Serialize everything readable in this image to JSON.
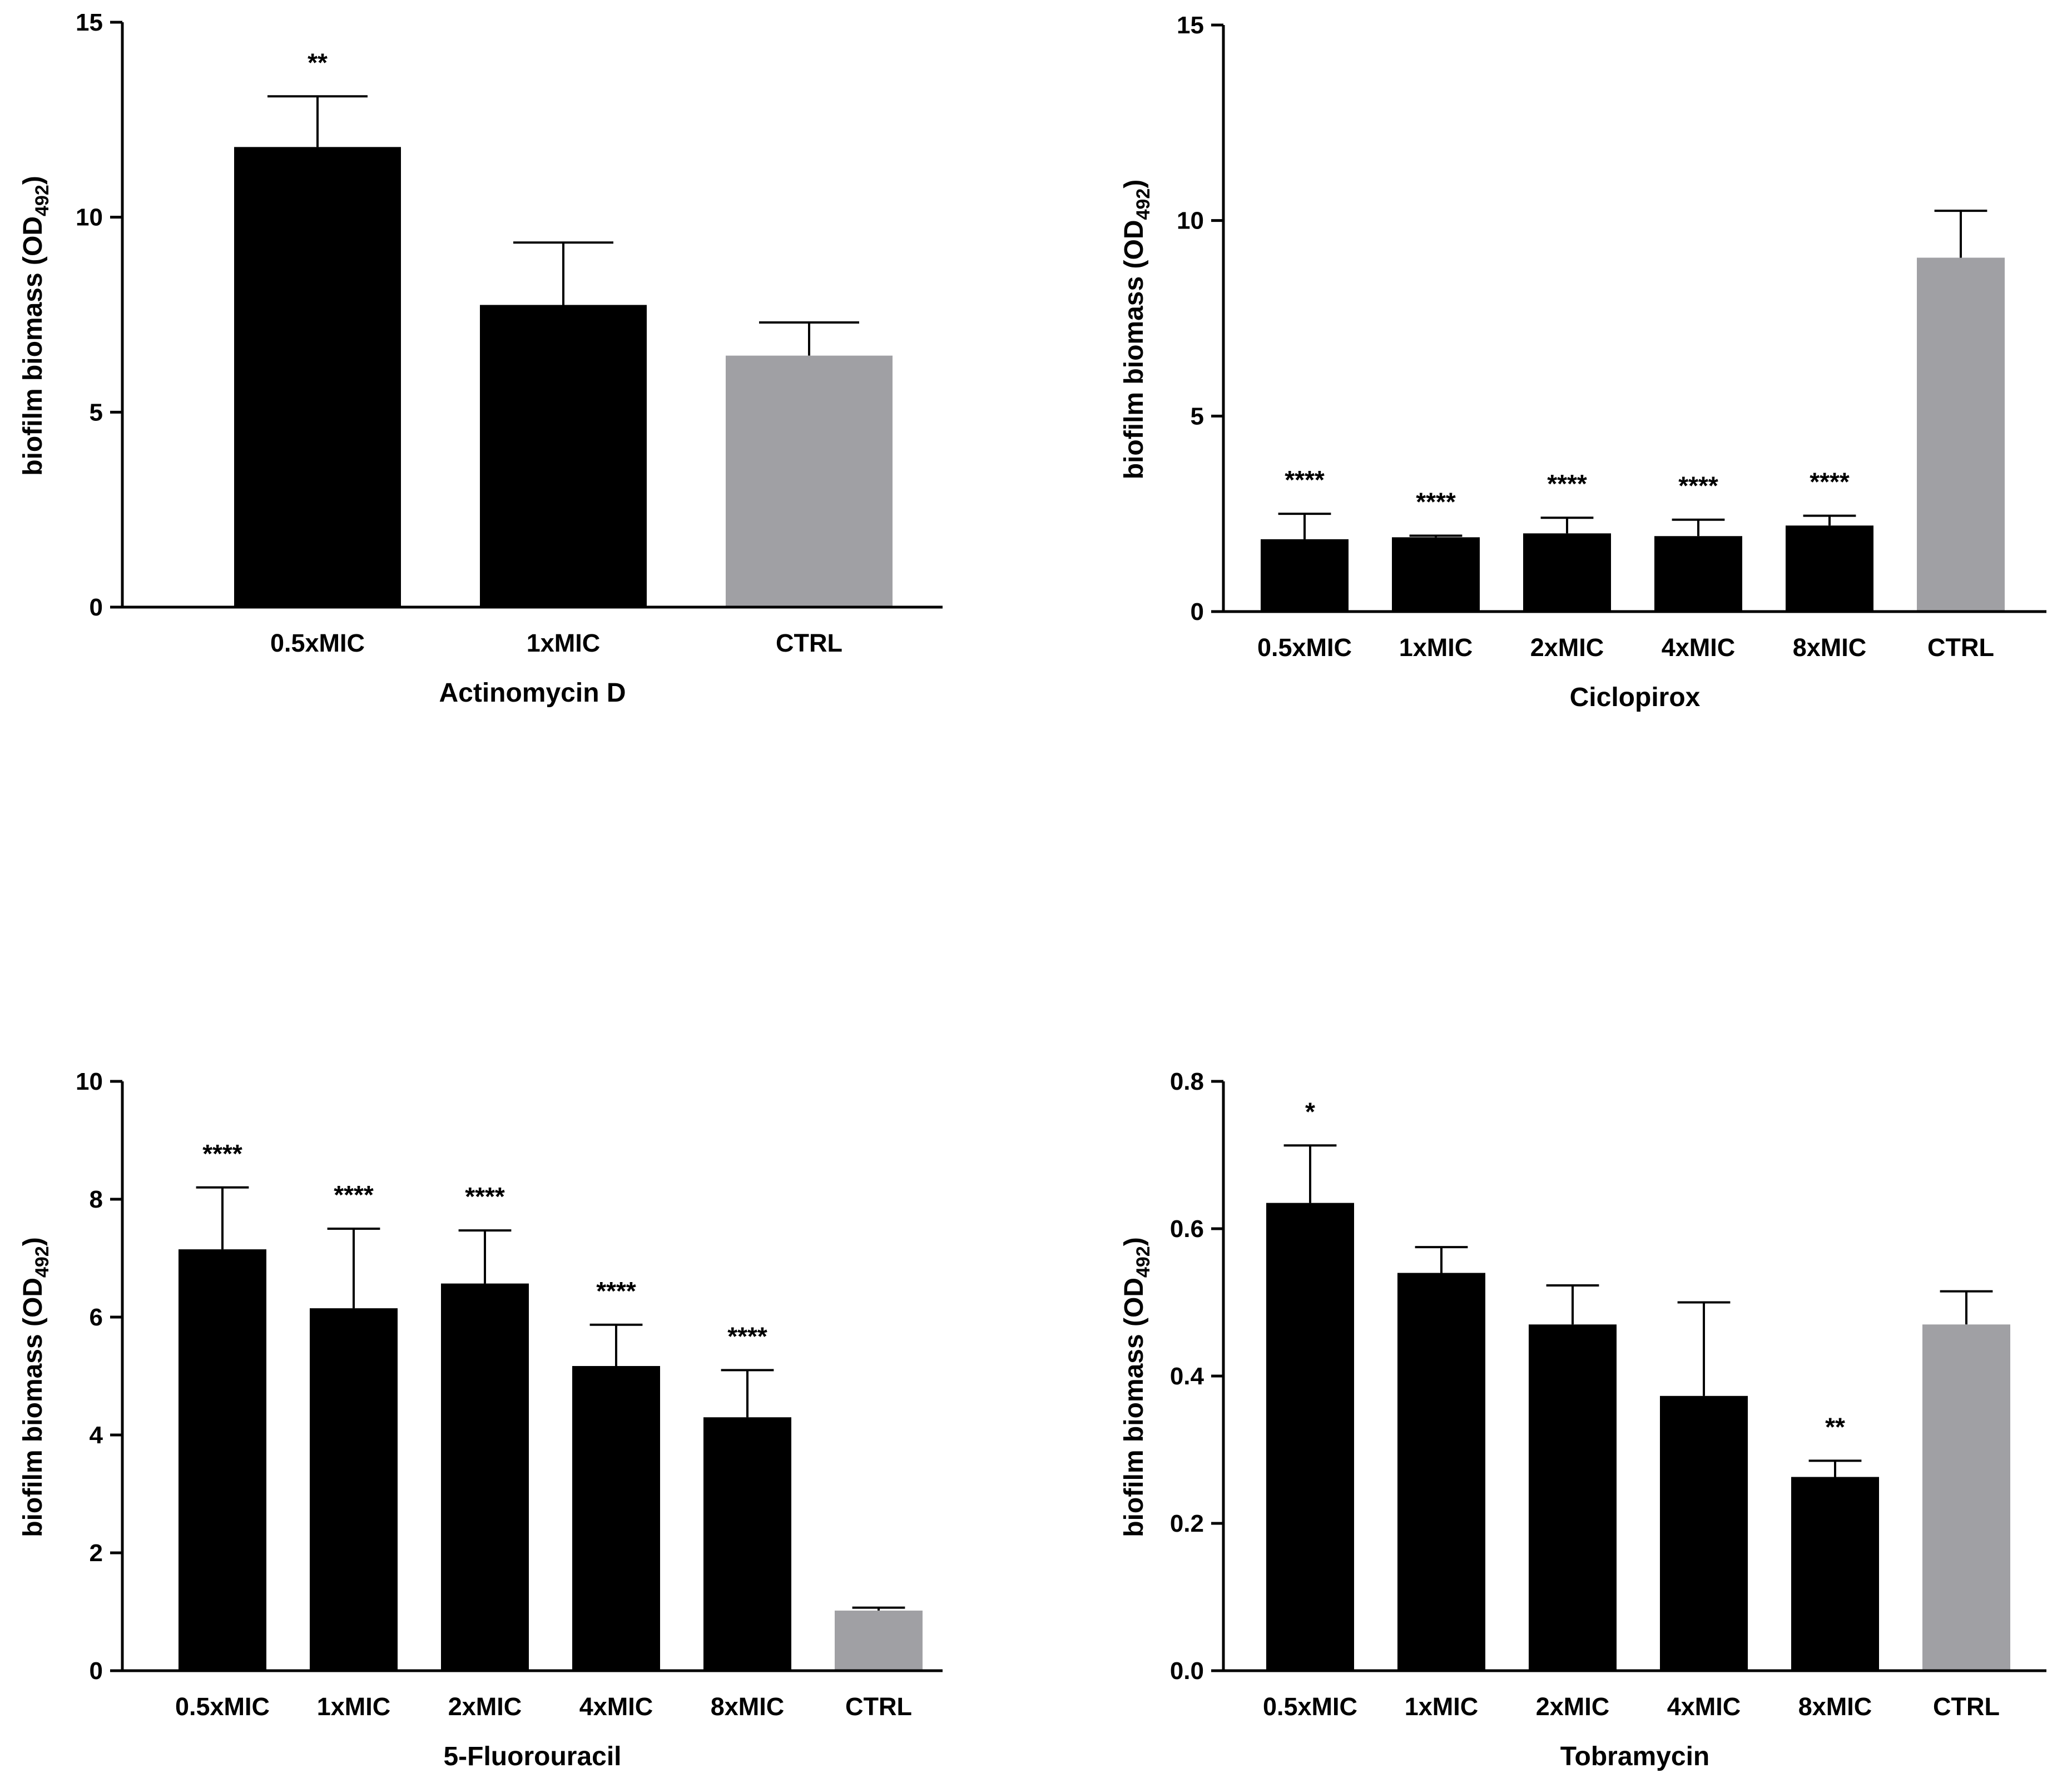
{
  "figure": {
    "colors": {
      "treatment": "#000000",
      "control": "#a0a0a4",
      "axis": "#000000"
    }
  },
  "chart_data": [
    {
      "type": "bar",
      "title": "",
      "xlabel": "Actinomycin D",
      "ylabel_main": "biofilm biomass (OD",
      "ylabel_sub": "492",
      "ylabel_close": ")",
      "ylim": [
        0,
        15
      ],
      "yticks": [
        0,
        5,
        10,
        15
      ],
      "ytick_labels": [
        "0",
        "5",
        "10",
        "15"
      ],
      "categories": [
        "0.5xMIC",
        "1xMIC",
        "CTRL"
      ],
      "values": [
        11.8,
        7.75,
        6.45
      ],
      "errors": [
        1.3,
        1.6,
        0.85
      ],
      "significance": [
        "**",
        "",
        ""
      ],
      "control": [
        false,
        false,
        true
      ]
    },
    {
      "type": "bar",
      "title": "",
      "xlabel": "Ciclopirox",
      "ylabel_main": "biofilm biomass (OD",
      "ylabel_sub": "492",
      "ylabel_close": ")",
      "ylim": [
        0,
        15
      ],
      "yticks": [
        0,
        5,
        10,
        15
      ],
      "ytick_labels": [
        "0",
        "5",
        "10",
        "15"
      ],
      "categories": [
        "0.5xMIC",
        "1xMIC",
        "2xMIC",
        "4xMIC",
        "8xMIC",
        "CTRL"
      ],
      "values": [
        1.85,
        1.9,
        2.0,
        1.93,
        2.2,
        9.05
      ],
      "errors": [
        0.65,
        0.04,
        0.4,
        0.42,
        0.25,
        1.2
      ],
      "significance": [
        "****",
        "****",
        "****",
        "****",
        "****",
        ""
      ],
      "control": [
        false,
        false,
        false,
        false,
        false,
        true
      ]
    },
    {
      "type": "bar",
      "title": "",
      "xlabel": "5-Fluorouracil",
      "ylabel_main": "biofilm biomass (OD",
      "ylabel_sub": "492",
      "ylabel_close": ")",
      "ylim": [
        0,
        10
      ],
      "yticks": [
        0,
        2,
        4,
        6,
        8,
        10
      ],
      "ytick_labels": [
        "0",
        "2",
        "4",
        "6",
        "8",
        "10"
      ],
      "categories": [
        "0.5xMIC",
        "1xMIC",
        "2xMIC",
        "4xMIC",
        "8xMIC",
        "CTRL"
      ],
      "values": [
        7.15,
        6.15,
        6.57,
        5.17,
        4.3,
        1.02
      ],
      "errors": [
        1.05,
        1.35,
        0.9,
        0.7,
        0.8,
        0.05
      ],
      "significance": [
        "****",
        "****",
        "****",
        "****",
        "****",
        ""
      ],
      "control": [
        false,
        false,
        false,
        false,
        false,
        true
      ]
    },
    {
      "type": "bar",
      "title": "",
      "xlabel": "Tobramycin",
      "ylabel_main": "biofilm biomass (OD",
      "ylabel_sub": "492",
      "ylabel_close": ")",
      "ylim": [
        0,
        0.8
      ],
      "yticks": [
        0,
        0.2,
        0.4,
        0.6,
        0.8
      ],
      "ytick_labels": [
        "0.0",
        "0.2",
        "0.4",
        "0.6",
        "0.8"
      ],
      "categories": [
        "0.5xMIC",
        "1xMIC",
        "2xMIC",
        "4xMIC",
        "8xMIC",
        "CTRL"
      ],
      "values": [
        0.635,
        0.54,
        0.47,
        0.373,
        0.263,
        0.47
      ],
      "errors": [
        0.078,
        0.035,
        0.053,
        0.127,
        0.022,
        0.045
      ],
      "significance": [
        "*",
        "",
        "",
        "",
        "**",
        ""
      ],
      "control": [
        false,
        false,
        false,
        false,
        false,
        true
      ]
    }
  ]
}
